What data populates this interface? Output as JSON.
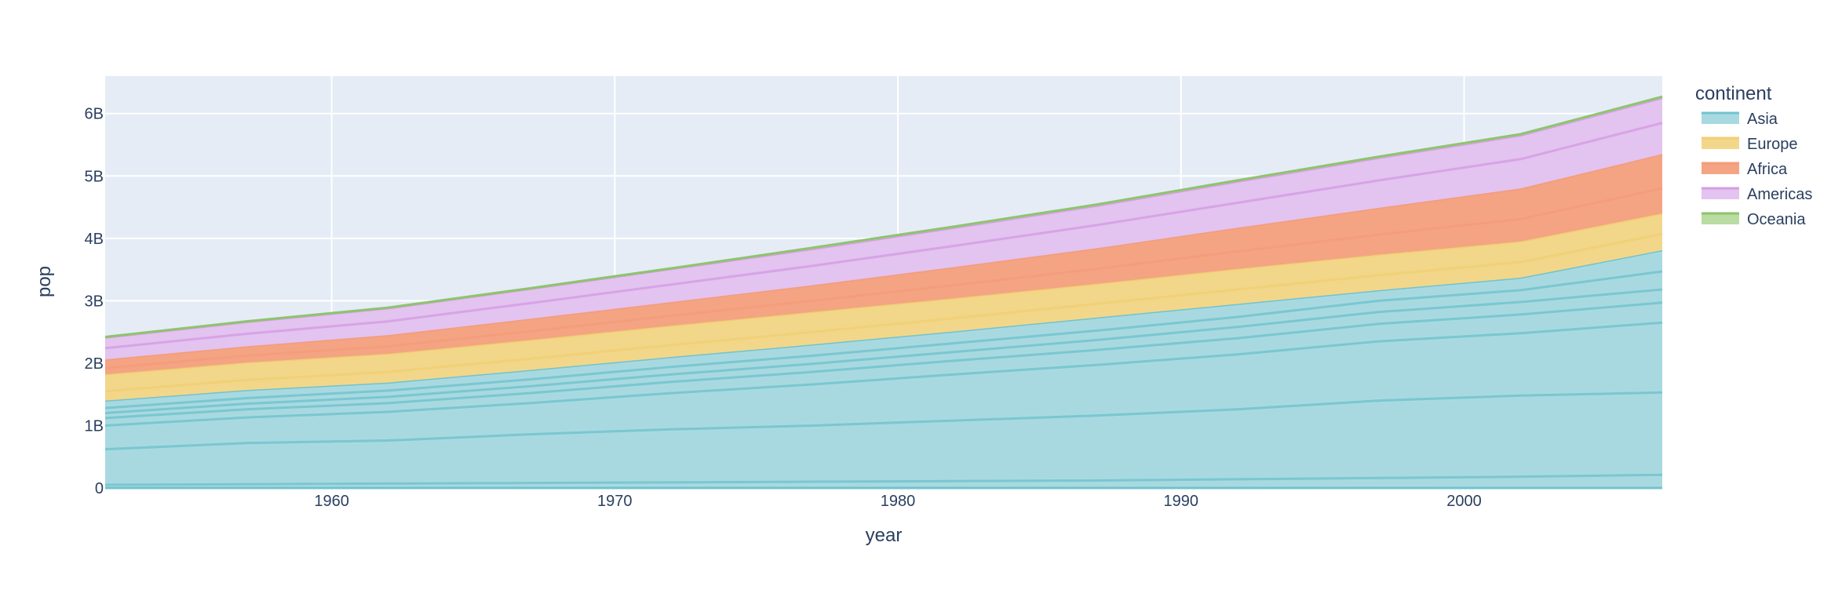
{
  "chart_data": {
    "type": "area",
    "title": "",
    "xlabel": "year",
    "ylabel": "pop",
    "x": [
      1952,
      1957,
      1962,
      1967,
      1972,
      1977,
      1982,
      1987,
      1992,
      1997,
      2002,
      2007
    ],
    "xlim": [
      1952,
      2007
    ],
    "ylim": [
      0,
      6.6
    ],
    "y_unit": "billions",
    "x_ticks": [
      1960,
      1970,
      1980,
      1990,
      2000
    ],
    "x_tick_labels": [
      "1960",
      "1970",
      "1980",
      "1990",
      "2000"
    ],
    "y_ticks": [
      0,
      1,
      2,
      3,
      4,
      5,
      6
    ],
    "y_tick_labels": [
      "0",
      "1B",
      "2B",
      "3B",
      "4B",
      "5B",
      "6B"
    ],
    "grid": true,
    "stacked": true,
    "legend_title": "continent",
    "legend_position": "right",
    "plot_background": "#e5ecf6",
    "series": [
      {
        "name": "Asia",
        "color": "#72c3cd",
        "fill": "#a8d9e1",
        "values": [
          1.4,
          1.57,
          1.69,
          1.89,
          2.1,
          2.3,
          2.51,
          2.73,
          2.95,
          3.17,
          3.37,
          3.81
        ],
        "sub_lines": [
          [
            0.05,
            0.06,
            0.07,
            0.08,
            0.09,
            0.1,
            0.11,
            0.12,
            0.14,
            0.16,
            0.18,
            0.21
          ],
          [
            0.62,
            0.72,
            0.76,
            0.86,
            0.94,
            1.0,
            1.08,
            1.16,
            1.26,
            1.4,
            1.48,
            1.53
          ],
          [
            1.0,
            1.13,
            1.22,
            1.36,
            1.52,
            1.66,
            1.82,
            1.97,
            2.14,
            2.35,
            2.48,
            2.65
          ],
          [
            1.12,
            1.26,
            1.36,
            1.52,
            1.7,
            1.86,
            2.04,
            2.21,
            2.4,
            2.63,
            2.78,
            2.97
          ],
          [
            1.2,
            1.35,
            1.46,
            1.63,
            1.82,
            1.99,
            2.18,
            2.37,
            2.58,
            2.82,
            2.98,
            3.18
          ],
          [
            1.28,
            1.44,
            1.56,
            1.74,
            1.94,
            2.12,
            2.32,
            2.52,
            2.74,
            3.0,
            3.17,
            3.47
          ]
        ]
      },
      {
        "name": "Europe",
        "color": "#f1cf74",
        "fill": "#f2d78a",
        "values": [
          0.42,
          0.44,
          0.46,
          0.48,
          0.5,
          0.52,
          0.53,
          0.54,
          0.56,
          0.57,
          0.58,
          0.59
        ],
        "sub_lines": [
          [
            0.15,
            0.16,
            0.17,
            0.18,
            0.19,
            0.2,
            0.21,
            0.22,
            0.23,
            0.24,
            0.25,
            0.26
          ]
        ]
      },
      {
        "name": "Africa",
        "color": "#f39c7b",
        "fill": "#f4a482",
        "values": [
          0.24,
          0.26,
          0.3,
          0.34,
          0.38,
          0.43,
          0.5,
          0.57,
          0.66,
          0.75,
          0.85,
          0.95
        ],
        "sub_lines": [
          [
            0.1,
            0.11,
            0.12,
            0.14,
            0.16,
            0.18,
            0.21,
            0.24,
            0.28,
            0.32,
            0.36,
            0.4
          ]
        ]
      },
      {
        "name": "Americas",
        "color": "#d59ee4",
        "fill": "#e3c3ef",
        "values": [
          0.35,
          0.39,
          0.43,
          0.48,
          0.53,
          0.58,
          0.63,
          0.68,
          0.74,
          0.8,
          0.85,
          0.9
        ],
        "sub_lines": [
          [
            0.18,
            0.2,
            0.22,
            0.25,
            0.28,
            0.31,
            0.34,
            0.37,
            0.4,
            0.44,
            0.47,
            0.5
          ]
        ]
      },
      {
        "name": "Oceania",
        "color": "#8ec46b",
        "fill": "#b9dca3",
        "values": [
          0.01,
          0.01,
          0.01,
          0.01,
          0.01,
          0.02,
          0.02,
          0.02,
          0.02,
          0.02,
          0.02,
          0.02
        ],
        "sub_lines": []
      }
    ]
  }
}
